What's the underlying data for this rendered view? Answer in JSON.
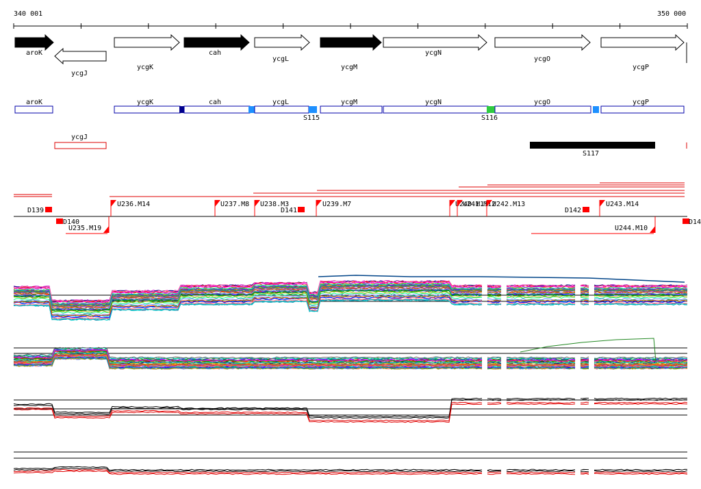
{
  "ruler": {
    "start_label": "340 001",
    "end_label": "350 000"
  },
  "colors": {
    "feature_blue": "#00a",
    "feature_red": "#d00",
    "segment_black": "#000",
    "marker_red": "#f00",
    "dark_blue": "#00008b",
    "light_blue": "#1e90ff",
    "green": "#2ecc40",
    "trace_black": "#000",
    "trace_red": "#e00000"
  },
  "genes": [
    {
      "name": "aroK",
      "strand": "+",
      "filled": true
    },
    {
      "name": "ycgJ",
      "strand": "-",
      "filled": false
    },
    {
      "name": "ycgK",
      "strand": "+",
      "filled": false
    },
    {
      "name": "cah",
      "strand": "+",
      "filled": true
    },
    {
      "name": "ycgL",
      "strand": "+",
      "filled": false
    },
    {
      "name": "ycgM",
      "strand": "+",
      "filled": true
    },
    {
      "name": "ycgN",
      "strand": "+",
      "filled": false
    },
    {
      "name": "ycgO",
      "strand": "+",
      "filled": false
    },
    {
      "name": "ycgP",
      "strand": "+",
      "filled": false
    }
  ],
  "boxes_forward": [
    "aroK",
    "ycgK",
    "cah",
    "ycgL",
    "ycgM",
    "ycgN",
    "ycgO",
    "ycgP"
  ],
  "box_reverse": "ycgJ",
  "segments": [
    "S115",
    "S116",
    "S117"
  ],
  "markers_top": [
    "D139",
    "U236.M14",
    "U237.M8",
    "U238.M3",
    "D141",
    "U239.M7",
    "U240.M11",
    "U241.M12",
    "U242.M13",
    "D142",
    "U243.M14"
  ],
  "markers_bottom": [
    "D140",
    "U235.M19",
    "U244.M10",
    "D14"
  ],
  "tracks": [
    {
      "name": "expression-multi-1",
      "series_count": 40
    },
    {
      "name": "expression-multi-2",
      "series_count": 40
    },
    {
      "name": "expression-summary-1",
      "series": [
        "black",
        "red"
      ]
    },
    {
      "name": "expression-summary-2",
      "series": [
        "black",
        "red"
      ]
    }
  ]
}
